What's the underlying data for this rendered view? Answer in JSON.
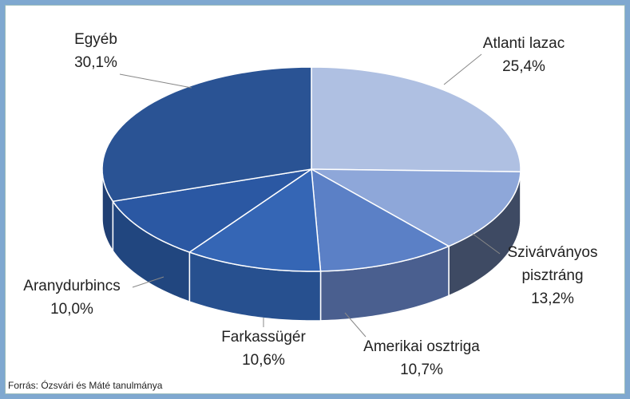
{
  "chart_data": {
    "type": "pie3d",
    "categories": [
      "Atlanti lazac",
      "Szivárványos pisztráng",
      "Amerikai osztriga",
      "Farkassügér",
      "Aranydurbincs",
      "Egyéb"
    ],
    "values": [
      25.4,
      13.2,
      10.7,
      10.6,
      10.0,
      30.1
    ],
    "value_labels": [
      "25,4%",
      "13,2%",
      "10,7%",
      "10,6%",
      "10,0%",
      "30,1%"
    ],
    "colors": [
      "#afc0e2",
      "#8ea7d9",
      "#5b80c6",
      "#3566b5",
      "#2b58a3",
      "#2a5394"
    ],
    "side_colors": [
      "#8a9bbd",
      "#3e4a63",
      "#4a5f8f",
      "#27508f",
      "#21467f",
      "#203f73"
    ],
    "source": "Forrás: Ózsvári és Máté tanulmánya"
  }
}
